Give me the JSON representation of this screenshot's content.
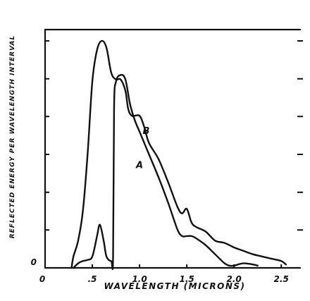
{
  "chart_data": {
    "type": "line",
    "xlabel": "WAVELENGTH (MICRONS)",
    "ylabel": "REFLECTED ENERGY PER WAVELENGTH INTERVAL",
    "xlim": [
      0,
      2.7
    ],
    "ylim": [
      0,
      1.0
    ],
    "x_tick_labels": [
      "0",
      ".5",
      "1.0",
      "1.5",
      "2.0",
      "2.5"
    ],
    "x_ticks": [
      0,
      0.5,
      1.0,
      1.5,
      2.0,
      2.5
    ],
    "y_tick_labels": [
      "0"
    ],
    "y_ticks": [
      0,
      0.167,
      0.333,
      0.5,
      0.667,
      0.833,
      1.0
    ],
    "right_ticks": [
      0.167,
      0.333,
      0.5,
      0.667,
      0.833,
      1.0
    ],
    "grid": false,
    "legend": "none",
    "series": [
      {
        "name": "A",
        "label_at": [
          1.0,
          0.44
        ],
        "x": [
          0.3,
          0.35,
          0.4,
          0.45,
          0.5,
          0.55,
          0.58,
          0.62,
          0.65,
          0.7,
          0.72,
          0.73,
          0.75,
          0.8,
          0.85,
          0.9,
          0.95,
          1.0,
          1.05,
          1.1,
          1.2,
          1.3,
          1.4,
          1.45,
          1.5,
          1.55,
          1.6,
          1.7,
          1.8,
          1.9,
          1.95,
          2.0,
          2.1,
          2.2,
          2.25
        ],
        "y": [
          0.0,
          0.02,
          0.03,
          0.035,
          0.05,
          0.14,
          0.19,
          0.12,
          0.05,
          0.03,
          0.05,
          0.7,
          0.82,
          0.85,
          0.83,
          0.72,
          0.65,
          0.6,
          0.55,
          0.5,
          0.4,
          0.29,
          0.17,
          0.14,
          0.14,
          0.14,
          0.13,
          0.1,
          0.06,
          0.02,
          0.01,
          0.01,
          0.02,
          0.015,
          0.01
        ]
      },
      {
        "name": "B",
        "label_at": [
          1.07,
          0.59
        ],
        "x": [
          0.28,
          0.3,
          0.35,
          0.4,
          0.45,
          0.5,
          0.55,
          0.6,
          0.65,
          0.7,
          0.75,
          0.8,
          0.85,
          0.88,
          0.92,
          1.0,
          1.05,
          1.1,
          1.2,
          1.3,
          1.4,
          1.45,
          1.5,
          1.55,
          1.6,
          1.7,
          1.8,
          1.9,
          2.0,
          2.1,
          2.2,
          2.3,
          2.4,
          2.5,
          2.55
        ],
        "y": [
          0.0,
          0.05,
          0.12,
          0.25,
          0.5,
          0.82,
          0.96,
          1.0,
          0.97,
          0.86,
          0.83,
          0.83,
          0.78,
          0.7,
          0.67,
          0.67,
          0.62,
          0.55,
          0.48,
          0.38,
          0.27,
          0.24,
          0.26,
          0.2,
          0.18,
          0.16,
          0.12,
          0.11,
          0.09,
          0.075,
          0.06,
          0.05,
          0.04,
          0.03,
          0.015
        ]
      }
    ]
  }
}
